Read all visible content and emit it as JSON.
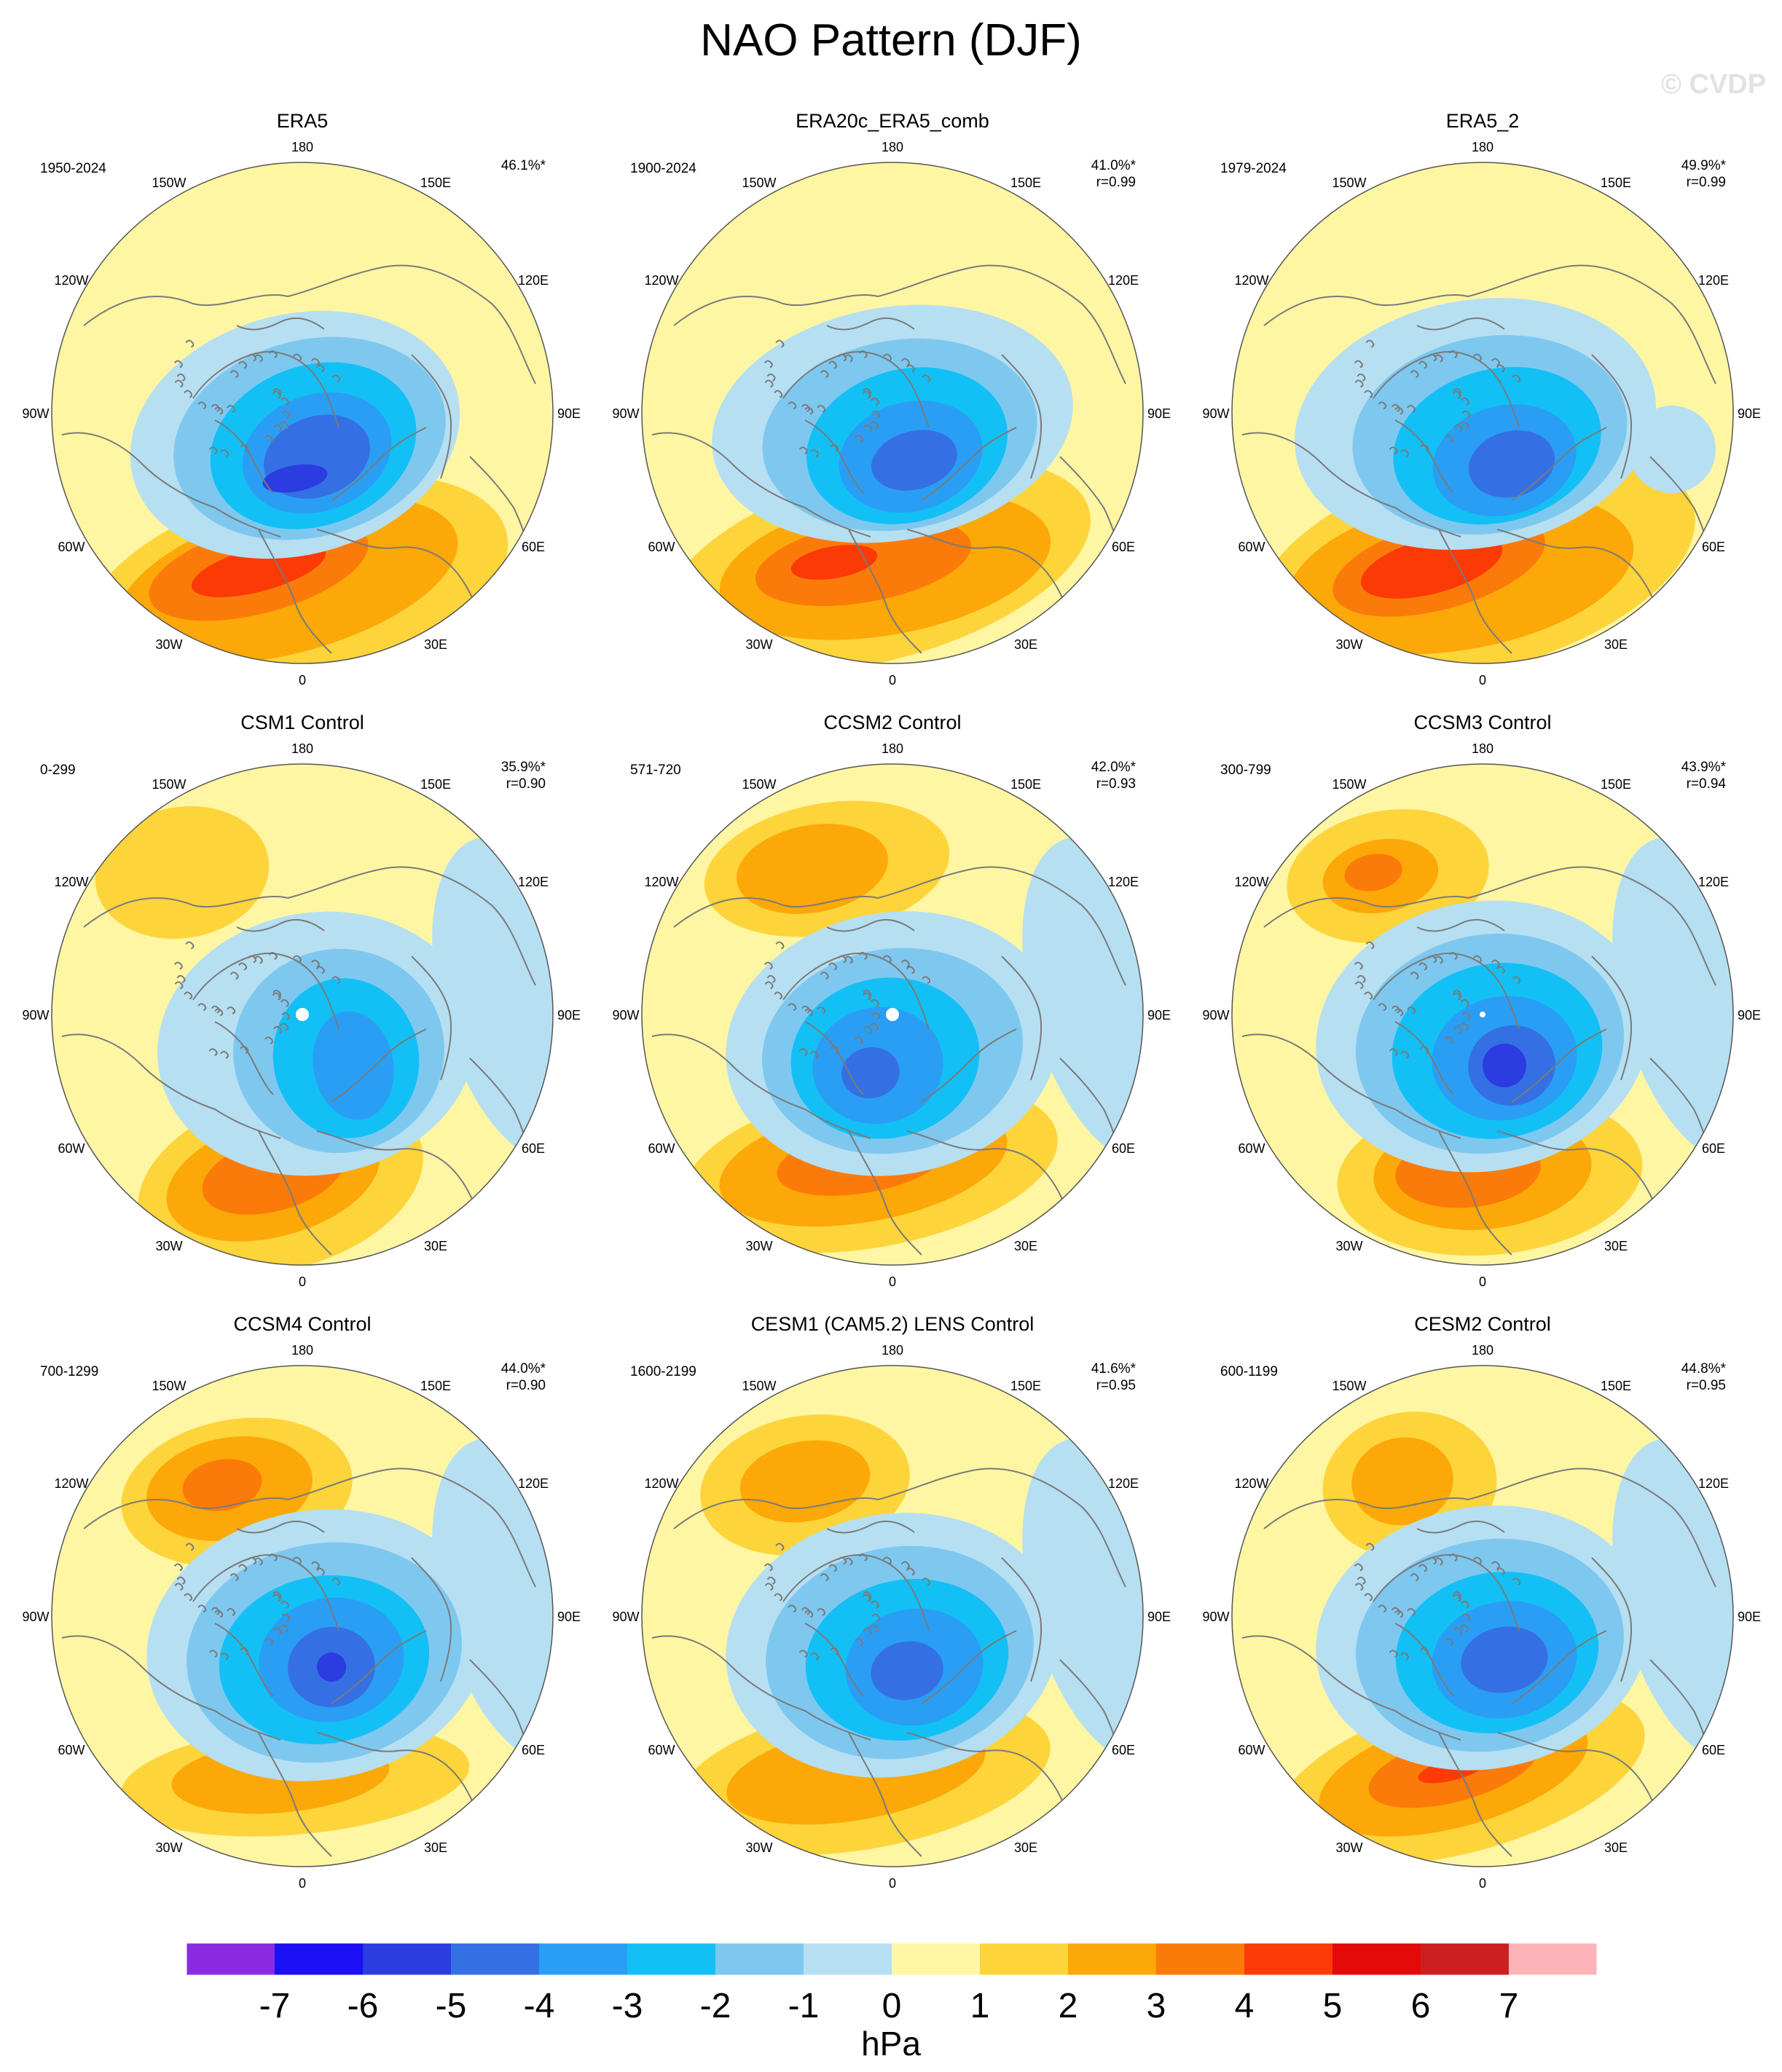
{
  "page": {
    "title": "NAO Pattern (DJF)",
    "watermark": "© CVDP"
  },
  "lon_labels": [
    "180",
    "150E",
    "120E",
    "90E",
    "60E",
    "30E",
    "0",
    "30W",
    "60W",
    "90W",
    "120W",
    "150W"
  ],
  "panels": [
    {
      "title": "ERA5",
      "years": "1950-2024",
      "pct": "46.1%*",
      "r": "",
      "hole": "none"
    },
    {
      "title": "ERA20c_ERA5_comb",
      "years": "1900-2024",
      "pct": "41.0%*",
      "r": "r=0.99",
      "hole": "none"
    },
    {
      "title": "ERA5_2",
      "years": "1979-2024",
      "pct": "49.9%*",
      "r": "r=0.99",
      "hole": "none"
    },
    {
      "title": "CSM1 Control",
      "years": "0-299",
      "pct": "35.9%*",
      "r": "r=0.90",
      "hole": "large"
    },
    {
      "title": "CCSM2 Control",
      "years": "571-720",
      "pct": "42.0%*",
      "r": "r=0.93",
      "hole": "large"
    },
    {
      "title": "CCSM3 Control",
      "years": "300-799",
      "pct": "43.9%*",
      "r": "r=0.94",
      "hole": "small"
    },
    {
      "title": "CCSM4 Control",
      "years": "700-1299",
      "pct": "44.0%*",
      "r": "r=0.90",
      "hole": "none"
    },
    {
      "title": "CESM1 (CAM5.2) LENS Control",
      "years": "1600-2199",
      "pct": "41.6%*",
      "r": "r=0.95",
      "hole": "none"
    },
    {
      "title": "CESM2 Control",
      "years": "600-1199",
      "pct": "44.8%*",
      "r": "r=0.95",
      "hole": "none"
    }
  ],
  "colorbar": {
    "unit": "hPa",
    "labels": [
      "-7",
      "-6",
      "-5",
      "-4",
      "-3",
      "-2",
      "-1",
      "0",
      "1",
      "2",
      "3",
      "4",
      "5",
      "6",
      "7"
    ],
    "colors": [
      "#8a2be2",
      "#1a0ff5",
      "#2b3ce0",
      "#3470e3",
      "#2a9ef5",
      "#13c0f5",
      "#7ec8f0",
      "#b6dff2",
      "#fff6a3",
      "#fdd43a",
      "#fca808",
      "#fb7b0a",
      "#fb3a06",
      "#e40a0a",
      "#cc2020",
      "#fcb4b8"
    ]
  },
  "palette": {
    "land_outline": "#7a7a7a",
    "circle_outline": "#555555",
    "background_field": "#fff6a3",
    "watermark_color": "#e2e2e2"
  }
}
